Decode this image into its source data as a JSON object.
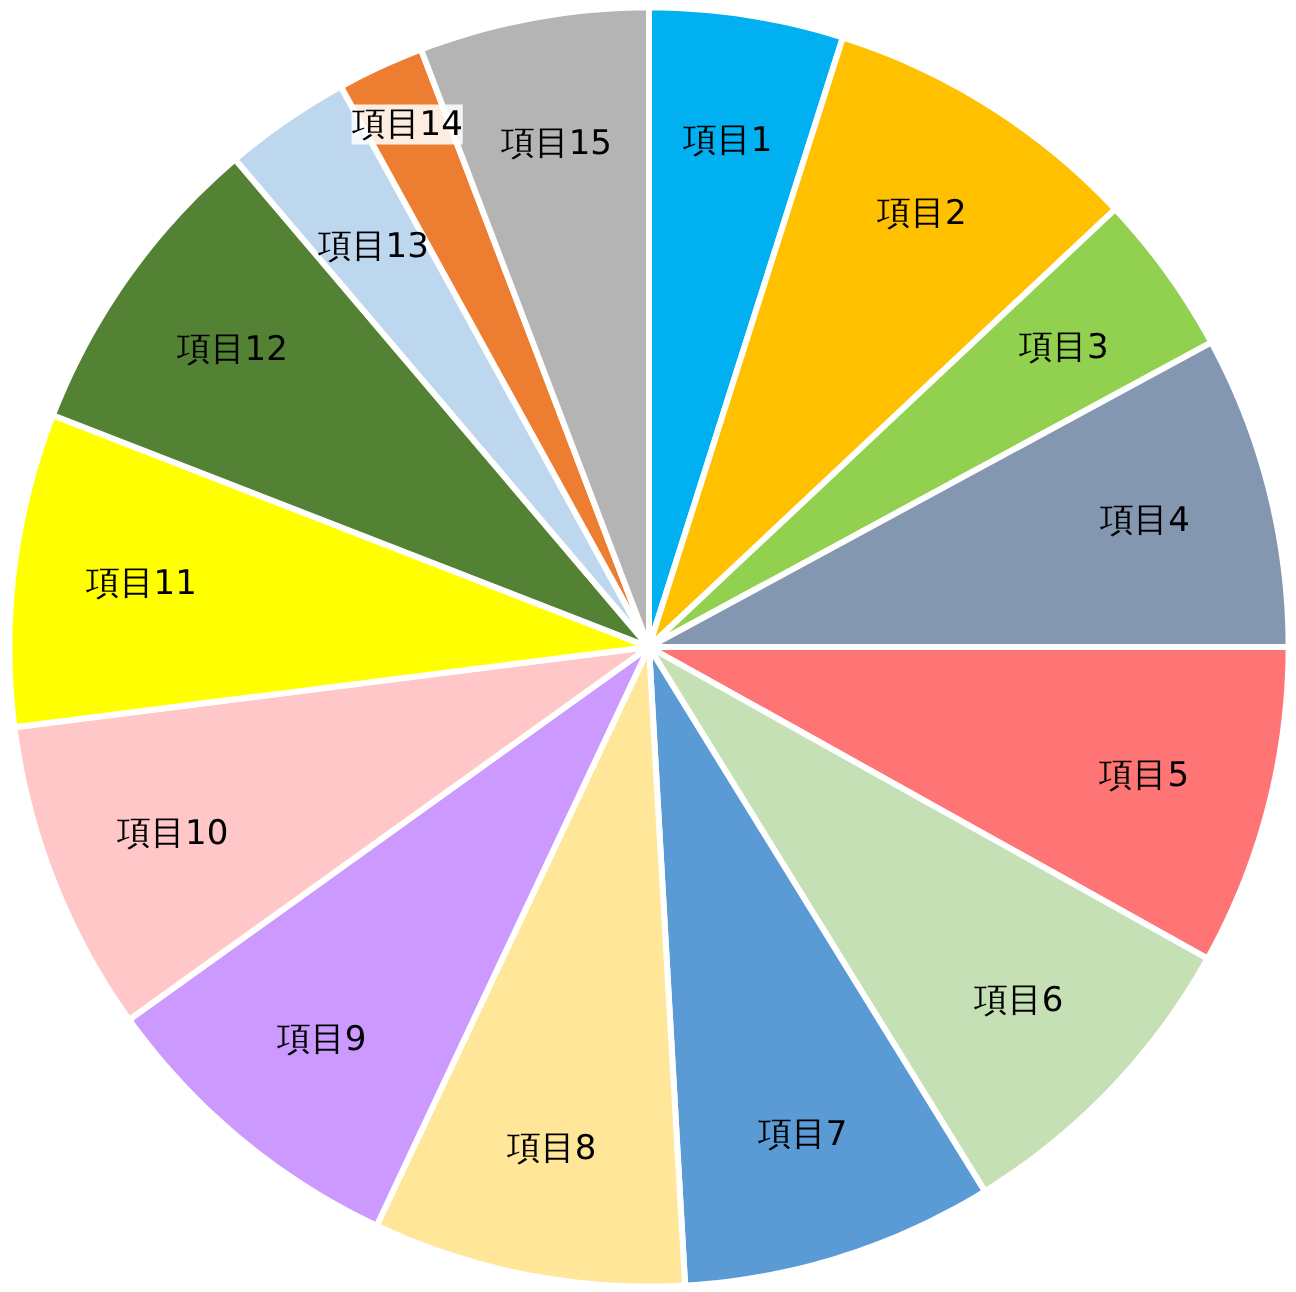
{
  "chart_data": {
    "type": "pie",
    "categories": [
      "項目1",
      "項目2",
      "項目3",
      "項目4",
      "項目5",
      "項目6",
      "項目7",
      "項目8",
      "項目9",
      "項目10",
      "項目11",
      "項目12",
      "項目13",
      "項目14",
      "項目15"
    ],
    "values": [
      4.9,
      8.1,
      4.1,
      7.9,
      8.1,
      8.1,
      7.9,
      7.9,
      8.1,
      7.9,
      7.9,
      7.9,
      3.2,
      2.2,
      5.8
    ],
    "colors": [
      "#00b0f0",
      "#ffc000",
      "#92d050",
      "#8497b0",
      "#ff7575",
      "#c5e0b4",
      "#5b9bd5",
      "#ffe699",
      "#cc99ff",
      "#ffc7c7",
      "#ffff00",
      "#548235",
      "#bdd7ee",
      "#ed7d31",
      "#b4b4b4"
    ]
  }
}
